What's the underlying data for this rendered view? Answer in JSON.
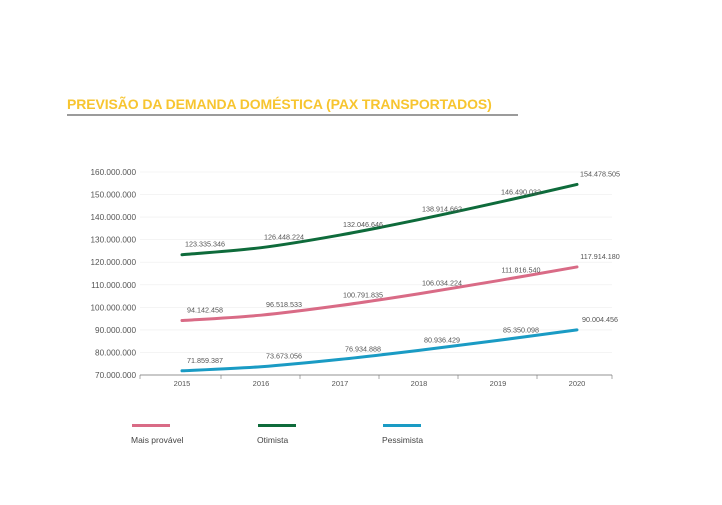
{
  "title": "PREVISÃO DA DEMANDA DOMÉSTICA (PAX TRANSPORTADOS)",
  "chart_data": {
    "type": "line",
    "title": "PREVISÃO DA DEMANDA DOMÉSTICA (PAX TRANSPORTADOS)",
    "x": [
      "2015",
      "2016",
      "2017",
      "2018",
      "2019",
      "2020"
    ],
    "y_ticks": [
      "70.000.000",
      "80.000.000",
      "90.000.000",
      "100.000.000",
      "110.000.000",
      "120.000.000",
      "130.000.000",
      "140.000.000",
      "150.000.000",
      "160.000.000"
    ],
    "ylim": [
      70000000,
      160000000
    ],
    "legend_position": "bottom",
    "series": [
      {
        "name": "Mais provável",
        "color": "#d96b86",
        "values": [
          94142458,
          96518533,
          100791835,
          106034224,
          111816540,
          117914180
        ],
        "labels": [
          "94.142.458",
          "96.518.533",
          "100.791.835",
          "106.034.224",
          "111.816.540",
          "117.914.180"
        ]
      },
      {
        "name": "Otimista",
        "color": "#0e6b3b",
        "values": [
          123335346,
          126448224,
          132046646,
          138914662,
          146490032,
          154478505
        ],
        "labels": [
          "123.335.346",
          "126.448.224",
          "132.046.646",
          "138.914.662",
          "146.490.032",
          "154.478.505"
        ]
      },
      {
        "name": "Pessimista",
        "color": "#1a9bc4",
        "values": [
          71859387,
          73673056,
          76934888,
          80936429,
          85350098,
          90004456
        ],
        "labels": [
          "71.859.387",
          "73.673.056",
          "76.934.888",
          "80.936.429",
          "85.350.098",
          "90.004.456"
        ]
      }
    ]
  }
}
